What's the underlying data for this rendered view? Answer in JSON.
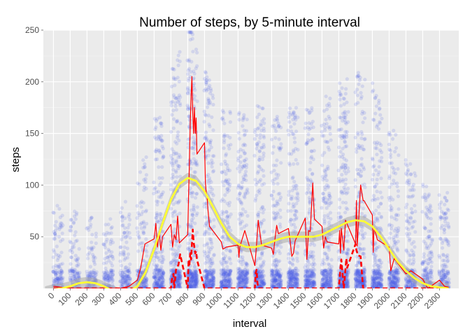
{
  "chart_data": {
    "type": "scatter",
    "title": "Number of steps, by 5-minute interval",
    "xlabel": "interval",
    "ylabel": "steps",
    "xlim": [
      -60,
      2415
    ],
    "ylim": [
      0,
      250
    ],
    "x_ticks": [
      "0",
      "100",
      "200",
      "300",
      "400",
      "500",
      "600",
      "700",
      "800",
      "900",
      "1000",
      "1100",
      "1200",
      "1300",
      "1400",
      "1500",
      "1600",
      "1700",
      "1800",
      "1900",
      "2000",
      "2100",
      "2200",
      "2300"
    ],
    "y_ticks": [
      "50",
      "100",
      "150",
      "200",
      "250"
    ],
    "grid": true,
    "legend": "none",
    "colors": {
      "panel": "#ebebeb",
      "grid": "#ffffff",
      "points": "#4a5be8",
      "mean_line": "#ff0000",
      "median_line": "#ff0000",
      "smooth_line": "#ffff33",
      "smooth_band": "#a9a9a9"
    },
    "series": [
      {
        "name": "",
        "kind": "points",
        "estimated_density": [
          [
            0,
            0.35
          ],
          [
            100,
            0.25
          ],
          [
            200,
            0.25
          ],
          [
            300,
            0.2
          ],
          [
            400,
            0.3
          ],
          [
            500,
            0.6
          ],
          [
            600,
            1.4
          ],
          [
            700,
            1.9
          ],
          [
            800,
            2.6
          ],
          [
            900,
            2.0
          ],
          [
            1000,
            1.5
          ],
          [
            1100,
            1.5
          ],
          [
            1200,
            1.6
          ],
          [
            1300,
            1.4
          ],
          [
            1400,
            1.5
          ],
          [
            1500,
            1.5
          ],
          [
            1600,
            1.6
          ],
          [
            1700,
            1.8
          ],
          [
            1800,
            2.0
          ],
          [
            1900,
            1.8
          ],
          [
            2000,
            1.3
          ],
          [
            2100,
            1.0
          ],
          [
            2200,
            0.6
          ],
          [
            2300,
            0.5
          ]
        ]
      },
      {
        "name": "",
        "kind": "mean-line",
        "x": [
          0,
          100,
          150,
          200,
          300,
          400,
          450,
          500,
          520,
          545,
          600,
          610,
          620,
          630,
          640,
          650,
          700,
          710,
          720,
          730,
          740,
          750,
          800,
          805,
          810,
          815,
          820,
          825,
          830,
          835,
          840,
          845,
          850,
          855,
          900,
          905,
          910,
          915,
          920,
          930,
          1000,
          1010,
          1030,
          1100,
          1105,
          1110,
          1140,
          1200,
          1210,
          1220,
          1240,
          1300,
          1310,
          1320,
          1330,
          1340,
          1400,
          1410,
          1420,
          1430,
          1440,
          1500,
          1510,
          1520,
          1530,
          1545,
          1550,
          1555,
          1600,
          1610,
          1620,
          1630,
          1700,
          1705,
          1710,
          1715,
          1730,
          1740,
          1800,
          1805,
          1810,
          1830,
          1845,
          1850,
          1900,
          1905,
          1910,
          1930,
          2000,
          2010,
          2030,
          2100,
          2130,
          2200,
          2230,
          2300,
          2330,
          2355
        ],
        "y": [
          2,
          0,
          0,
          0,
          0,
          0,
          2,
          8,
          20,
          43,
          48,
          63,
          40,
          55,
          37,
          50,
          62,
          40,
          52,
          47,
          70,
          44,
          52,
          90,
          120,
          160,
          185,
          205,
          170,
          150,
          175,
          150,
          165,
          130,
          141,
          103,
          93,
          90,
          77,
          60,
          45,
          38,
          40,
          42,
          30,
          40,
          56,
          22,
          42,
          66,
          42,
          39,
          33,
          48,
          61,
          53,
          58,
          46,
          31,
          34,
          46,
          68,
          28,
          56,
          55,
          102,
          84,
          67,
          60,
          39,
          50,
          45,
          43,
          56,
          34,
          58,
          37,
          66,
          43,
          85,
          41,
          100,
          85,
          85,
          71,
          35,
          59,
          47,
          40,
          17,
          29,
          14,
          17,
          9,
          0,
          8,
          2,
          1
        ]
      },
      {
        "name": "",
        "kind": "median-line",
        "x": [
          0,
          500,
          600,
          700,
          705,
          715,
          720,
          730,
          745,
          755,
          800,
          805,
          810,
          815,
          820,
          830,
          835,
          845,
          850,
          855,
          900,
          905,
          1200,
          1205,
          1210,
          1215,
          1220,
          1700,
          1705,
          1710,
          1715,
          1730,
          1745,
          1750,
          1800,
          1805,
          1815,
          1830,
          1845,
          1900,
          2355
        ],
        "y": [
          0,
          0,
          0,
          0,
          8,
          14,
          0,
          18,
          23,
          33,
          0,
          26,
          23,
          34,
          28,
          57,
          45,
          34,
          36,
          28,
          0,
          0,
          0,
          15,
          18,
          6,
          0,
          0,
          10,
          20,
          28,
          0,
          29,
          20,
          43,
          37,
          32,
          31,
          0,
          0,
          0
        ]
      },
      {
        "name": "",
        "kind": "smooth",
        "x": [
          -50,
          0,
          50,
          100,
          150,
          200,
          250,
          300,
          350,
          400,
          450,
          500,
          550,
          600,
          650,
          700,
          750,
          800,
          850,
          900,
          950,
          1000,
          1050,
          1100,
          1150,
          1200,
          1250,
          1300,
          1350,
          1400,
          1450,
          1500,
          1550,
          1600,
          1650,
          1700,
          1750,
          1800,
          1850,
          1900,
          1950,
          2000,
          2050,
          2100,
          2150,
          2200,
          2250,
          2300,
          2355
        ],
        "y": [
          -3,
          -1,
          0,
          2,
          5,
          6,
          5,
          2,
          -2,
          -5,
          -3,
          2,
          16,
          38,
          63,
          86,
          101,
          107,
          104,
          94,
          79,
          63,
          50,
          43,
          40,
          40,
          42,
          45,
          48,
          50,
          50,
          50,
          50,
          52,
          56,
          60,
          64,
          66,
          65,
          60,
          50,
          38,
          26,
          17,
          10,
          5,
          2,
          1,
          0
        ]
      }
    ]
  }
}
